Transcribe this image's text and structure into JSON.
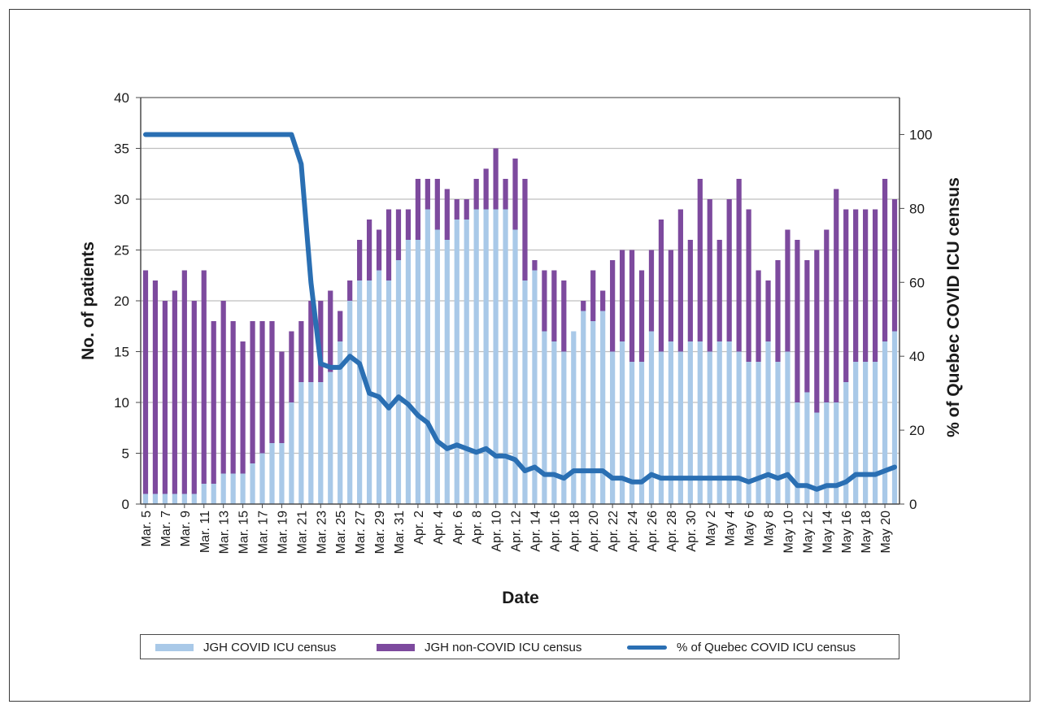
{
  "chart_data": {
    "type": "bar",
    "stacked": true,
    "xlabel": "Date",
    "ylabel": "No. of patients",
    "y2label": "% of Quebec COVID ICU census",
    "ylim": [
      0,
      40
    ],
    "y2lim": [
      0,
      110
    ],
    "yticks": [
      0,
      5,
      10,
      15,
      20,
      25,
      30,
      35,
      40
    ],
    "y2ticks": [
      0,
      20,
      40,
      60,
      80,
      100
    ],
    "grid": "horizontal",
    "legend_position": "bottom",
    "x": [
      "Mar. 5",
      "Mar. 6",
      "Mar. 7",
      "Mar. 8",
      "Mar. 9",
      "Mar. 10",
      "Mar. 11",
      "Mar. 12",
      "Mar. 13",
      "Mar. 14",
      "Mar. 15",
      "Mar. 16",
      "Mar. 17",
      "Mar. 18",
      "Mar. 19",
      "Mar. 20",
      "Mar. 21",
      "Mar. 22",
      "Mar. 23",
      "Mar. 24",
      "Mar. 25",
      "Mar. 26",
      "Mar. 27",
      "Mar. 28",
      "Mar. 29",
      "Mar. 30",
      "Mar. 31",
      "Apr. 1",
      "Apr. 2",
      "Apr. 3",
      "Apr. 4",
      "Apr. 5",
      "Apr. 6",
      "Apr. 7",
      "Apr. 8",
      "Apr. 9",
      "Apr. 10",
      "Apr. 11",
      "Apr. 12",
      "Apr. 13",
      "Apr. 14",
      "Apr. 15",
      "Apr. 16",
      "Apr. 17",
      "Apr. 18",
      "Apr. 19",
      "Apr. 20",
      "Apr. 21",
      "Apr. 22",
      "Apr. 23",
      "Apr. 24",
      "Apr. 25",
      "Apr. 26",
      "Apr. 27",
      "Apr. 28",
      "Apr. 29",
      "Apr. 30",
      "May 1",
      "May 2",
      "May 3",
      "May 4",
      "May 5",
      "May 6",
      "May 7",
      "May 8",
      "May 9",
      "May 10",
      "May 11",
      "May 12",
      "May 13",
      "May 14",
      "May 15",
      "May 16",
      "May 17",
      "May 18",
      "May 19",
      "May 20",
      "May 21"
    ],
    "x_tick_labels": [
      "Mar. 5",
      "Mar. 7",
      "Mar. 9",
      "Mar. 11",
      "Mar. 13",
      "Mar. 15",
      "Mar. 17",
      "Mar. 19",
      "Mar. 21",
      "Mar. 23",
      "Mar. 25",
      "Mar. 27",
      "Mar. 29",
      "Mar. 31",
      "Apr. 2",
      "Apr. 4",
      "Apr. 6",
      "Apr. 8",
      "Apr. 10",
      "Apr. 12",
      "Apr. 14",
      "Apr. 16",
      "Apr. 18",
      "Apr. 20",
      "Apr. 22",
      "Apr. 24",
      "Apr. 26",
      "Apr. 28",
      "Apr. 30",
      "May 2",
      "May 4",
      "May 6",
      "May 8",
      "May 10",
      "May 12",
      "May 14",
      "May 16",
      "May 18",
      "May 20"
    ],
    "series": [
      {
        "name": "JGH COVID ICU census",
        "type": "bar",
        "axis": "left",
        "color": "#a9c9e8",
        "values": [
          1,
          1,
          1,
          1,
          1,
          1,
          2,
          2,
          3,
          3,
          3,
          4,
          5,
          6,
          6,
          10,
          12,
          12,
          12,
          13,
          16,
          20,
          22,
          22,
          23,
          22,
          24,
          26,
          26,
          29,
          27,
          26,
          28,
          28,
          29,
          29,
          29,
          29,
          27,
          22,
          23,
          17,
          16,
          15,
          17,
          19,
          18,
          19,
          15,
          16,
          14,
          14,
          17,
          15,
          16,
          15,
          16,
          16,
          15,
          16,
          16,
          15,
          14,
          14,
          16,
          14,
          15,
          10,
          11,
          9,
          10,
          10,
          12,
          14,
          14,
          14,
          16,
          17
        ]
      },
      {
        "name": "JGH non-COVID ICU census",
        "type": "bar",
        "axis": "left",
        "color": "#7d4a9e",
        "values": [
          22,
          21,
          19,
          20,
          22,
          19,
          21,
          16,
          17,
          15,
          13,
          14,
          13,
          12,
          9,
          7,
          6,
          8,
          8,
          8,
          3,
          2,
          4,
          6,
          4,
          7,
          5,
          3,
          6,
          3,
          5,
          5,
          2,
          2,
          3,
          4,
          6,
          3,
          7,
          10,
          1,
          6,
          7,
          7,
          0,
          1,
          5,
          2,
          9,
          9,
          11,
          9,
          8,
          13,
          9,
          14,
          10,
          16,
          15,
          10,
          14,
          17,
          15,
          9,
          6,
          10,
          12,
          16,
          13,
          16,
          17,
          21,
          17,
          15,
          15,
          15,
          16,
          13
        ]
      },
      {
        "name": "% of Quebec COVID ICU census",
        "type": "line",
        "axis": "right",
        "color": "#2a6fb3",
        "values": [
          100,
          100,
          100,
          100,
          100,
          100,
          100,
          100,
          100,
          100,
          100,
          100,
          100,
          100,
          100,
          100,
          92,
          60,
          38,
          37,
          37,
          40,
          38,
          30,
          29,
          26,
          29,
          27,
          24,
          22,
          17,
          15,
          16,
          15,
          14,
          15,
          13,
          13,
          12,
          9,
          10,
          8,
          8,
          7,
          9,
          9,
          9,
          9,
          7,
          7,
          6,
          6,
          8,
          7,
          7,
          7,
          7,
          7,
          7,
          7,
          7,
          7,
          6,
          7,
          8,
          7,
          8,
          5,
          5,
          4,
          5,
          5,
          6,
          8,
          8,
          8,
          9,
          10
        ]
      }
    ]
  },
  "legend": {
    "covid_label": "JGH COVID ICU census",
    "noncovid_label": "JGH non-COVID ICU census",
    "pct_label": "% of Quebec COVID ICU census"
  },
  "colors": {
    "covid": "#a9c9e8",
    "noncovid": "#7d4a9e",
    "line": "#2a6fb3",
    "grid": "#bfbfbf"
  }
}
